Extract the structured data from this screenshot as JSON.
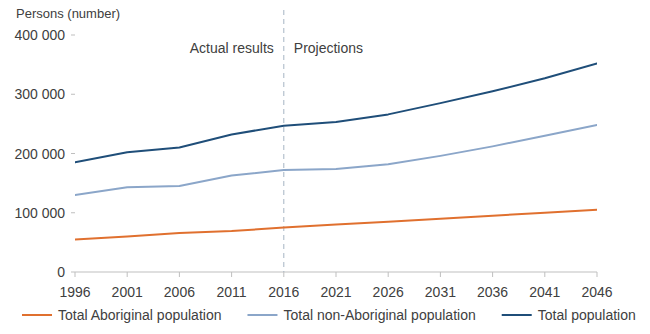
{
  "chart_data": {
    "type": "line",
    "y_label": "Persons (number)",
    "annotations": [
      "Actual results",
      "Projections"
    ],
    "reference_line": {
      "x": 2016,
      "line_style": "dashed"
    },
    "x": [
      1996,
      2001,
      2006,
      2011,
      2016,
      2021,
      2026,
      2031,
      2036,
      2041,
      2046
    ],
    "xlim": [
      1996,
      2046
    ],
    "xticks": [
      1996,
      2001,
      2006,
      2011,
      2016,
      2021,
      2026,
      2031,
      2036,
      2041,
      2046
    ],
    "ylim": [
      0,
      400000
    ],
    "yticks": [
      0,
      {
        "value": 100000,
        "label": "100 000"
      },
      {
        "value": 200000,
        "label": "200 000"
      },
      {
        "value": 300000,
        "label": "300 000"
      },
      {
        "value": 400000,
        "label": "400 000"
      }
    ],
    "grid": false,
    "legend": "bottom",
    "series": [
      {
        "name": "Total Aboriginal population",
        "color": "#e0702f",
        "values": [
          55000,
          60000,
          66000,
          69000,
          75000,
          80000,
          85000,
          90000,
          95000,
          100000,
          105000
        ]
      },
      {
        "name": "Total non-Aboriginal population",
        "color": "#8ba6c9",
        "values": [
          130000,
          143000,
          145000,
          163000,
          172000,
          174000,
          182000,
          196000,
          212000,
          230000,
          248000
        ]
      },
      {
        "name": "Total population",
        "color": "#1f4e79",
        "values": [
          185000,
          202000,
          210000,
          232000,
          247000,
          253000,
          266000,
          285000,
          305000,
          327000,
          352000
        ]
      }
    ]
  }
}
